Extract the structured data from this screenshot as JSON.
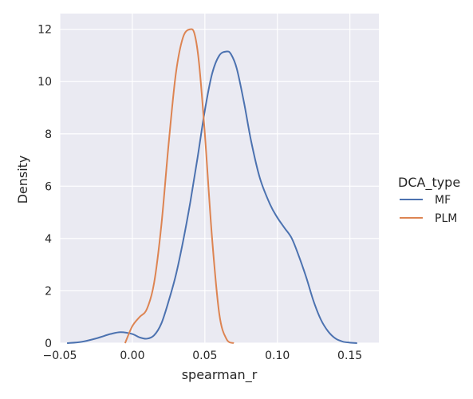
{
  "chart_data": {
    "type": "line",
    "title": "",
    "xlabel": "spearman_r",
    "ylabel": "Density",
    "xlim": [
      -0.05,
      0.17
    ],
    "ylim": [
      0,
      12.6
    ],
    "x_ticks": [
      -0.05,
      0.0,
      0.05,
      0.1,
      0.15
    ],
    "x_tick_labels": [
      "−0.05",
      "0.00",
      "0.05",
      "0.10",
      "0.15"
    ],
    "y_ticks": [
      0,
      2,
      4,
      6,
      8,
      10,
      12
    ],
    "y_tick_labels": [
      "0",
      "2",
      "4",
      "6",
      "8",
      "10",
      "12"
    ],
    "grid": true,
    "legend": {
      "title": "DCA_type",
      "placement": "right",
      "entries": [
        "MF",
        "PLM"
      ]
    },
    "series": [
      {
        "name": "MF",
        "color": "#4c72b0",
        "x": [
          -0.045,
          -0.035,
          -0.025,
          -0.015,
          -0.008,
          0.0,
          0.005,
          0.01,
          0.015,
          0.02,
          0.025,
          0.03,
          0.035,
          0.04,
          0.045,
          0.05,
          0.055,
          0.06,
          0.065,
          0.068,
          0.072,
          0.077,
          0.082,
          0.088,
          0.095,
          0.1,
          0.105,
          0.11,
          0.115,
          0.12,
          0.125,
          0.13,
          0.135,
          0.14,
          0.145,
          0.15,
          0.155
        ],
        "y": [
          0.0,
          0.05,
          0.18,
          0.35,
          0.42,
          0.35,
          0.22,
          0.17,
          0.3,
          0.75,
          1.6,
          2.6,
          3.9,
          5.4,
          7.1,
          8.9,
          10.3,
          11.0,
          11.15,
          11.05,
          10.5,
          9.2,
          7.7,
          6.3,
          5.3,
          4.8,
          4.4,
          4.0,
          3.3,
          2.5,
          1.6,
          0.9,
          0.45,
          0.18,
          0.06,
          0.02,
          0.0
        ]
      },
      {
        "name": "PLM",
        "color": "#dd8452",
        "x": [
          -0.005,
          0.0,
          0.005,
          0.01,
          0.015,
          0.02,
          0.025,
          0.03,
          0.035,
          0.04,
          0.043,
          0.046,
          0.05,
          0.055,
          0.06,
          0.065,
          0.07
        ],
        "y": [
          0.0,
          0.65,
          1.0,
          1.3,
          2.3,
          4.5,
          7.6,
          10.3,
          11.7,
          12.0,
          11.8,
          10.7,
          8.0,
          4.0,
          1.1,
          0.15,
          0.0
        ]
      }
    ]
  }
}
